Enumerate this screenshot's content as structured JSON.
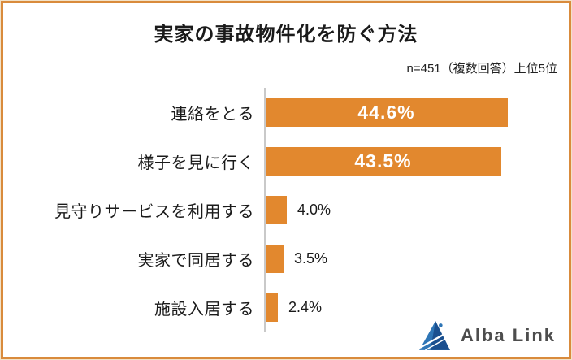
{
  "chart_data": {
    "type": "bar",
    "orientation": "horizontal",
    "title": "実家の事故物件化を防ぐ方法",
    "note": "n=451（複数回答）上位5位",
    "categories": [
      "連絡をとる",
      "様子を見に行く",
      "見守りサービスを利用する",
      "実家で同居する",
      "施設入居する"
    ],
    "values": [
      44.6,
      43.5,
      4.0,
      3.5,
      2.4
    ],
    "value_labels": [
      "44.6%",
      "43.5%",
      "4.0%",
      "3.5%",
      "2.4%"
    ],
    "xlim": [
      0,
      50
    ],
    "legend": "none",
    "grid": "off",
    "bar_color": "#E2882E",
    "inside_label_threshold": 10
  },
  "branding": {
    "logo_text": "Alba Link"
  },
  "colors": {
    "accent_orange": "#E2882E",
    "frame_border_orange": "#D98B3C",
    "axis_gray": "#C9C9C9",
    "logo_blue_dark": "#1A4F8F",
    "logo_blue_light": "#2E75B6",
    "value_text_inside": "#FFFFFF",
    "text_dark": "#1A1A1A"
  }
}
